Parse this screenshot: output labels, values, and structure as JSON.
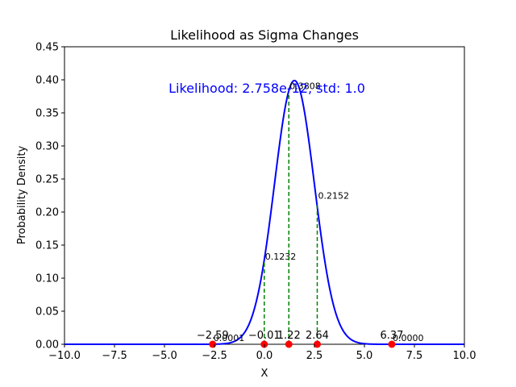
{
  "chart_data": {
    "type": "line",
    "title": "Likelihood as Sigma Changes",
    "xlabel": "X",
    "ylabel": "Probability Density",
    "xlim": [
      -10,
      10
    ],
    "ylim": [
      0,
      0.45
    ],
    "xticks": [
      "−10.0",
      "−7.5",
      "−5.0",
      "−2.5",
      "0.0",
      "2.5",
      "5.0",
      "7.5",
      "10.0"
    ],
    "xtick_values": [
      -10,
      -7.5,
      -5,
      -2.5,
      0,
      2.5,
      5,
      7.5,
      10
    ],
    "yticks": [
      "0.00",
      "0.05",
      "0.10",
      "0.15",
      "0.20",
      "0.25",
      "0.30",
      "0.35",
      "0.40",
      "0.45"
    ],
    "ytick_values": [
      0,
      0.05,
      0.1,
      0.15,
      0.2,
      0.25,
      0.3,
      0.35,
      0.4,
      0.45
    ],
    "grid": false,
    "curve": {
      "type": "normal",
      "mean": 1.5,
      "std": 1.0,
      "color": "#0000ff"
    },
    "likelihood_text": "Likelihood: 2.758e-12, std: 1.0",
    "likelihood_color": "#0000ff",
    "point_color": "#ff0000",
    "stem_color": "#008000",
    "points": [
      {
        "x": -2.59,
        "label": "−2.59",
        "density": 0.0001,
        "density_label": "0.0001"
      },
      {
        "x": -0.01,
        "label": "−0.01",
        "density": 0.1232,
        "density_label": "0.1232"
      },
      {
        "x": 1.22,
        "label": "1.22",
        "density": 0.3808,
        "density_label": "0.3808"
      },
      {
        "x": 2.64,
        "label": "2.64",
        "density": 0.2152,
        "density_label": "0.2152"
      },
      {
        "x": 6.37,
        "label": "6.37",
        "density": 0.0,
        "density_label": "0.0000"
      }
    ]
  }
}
